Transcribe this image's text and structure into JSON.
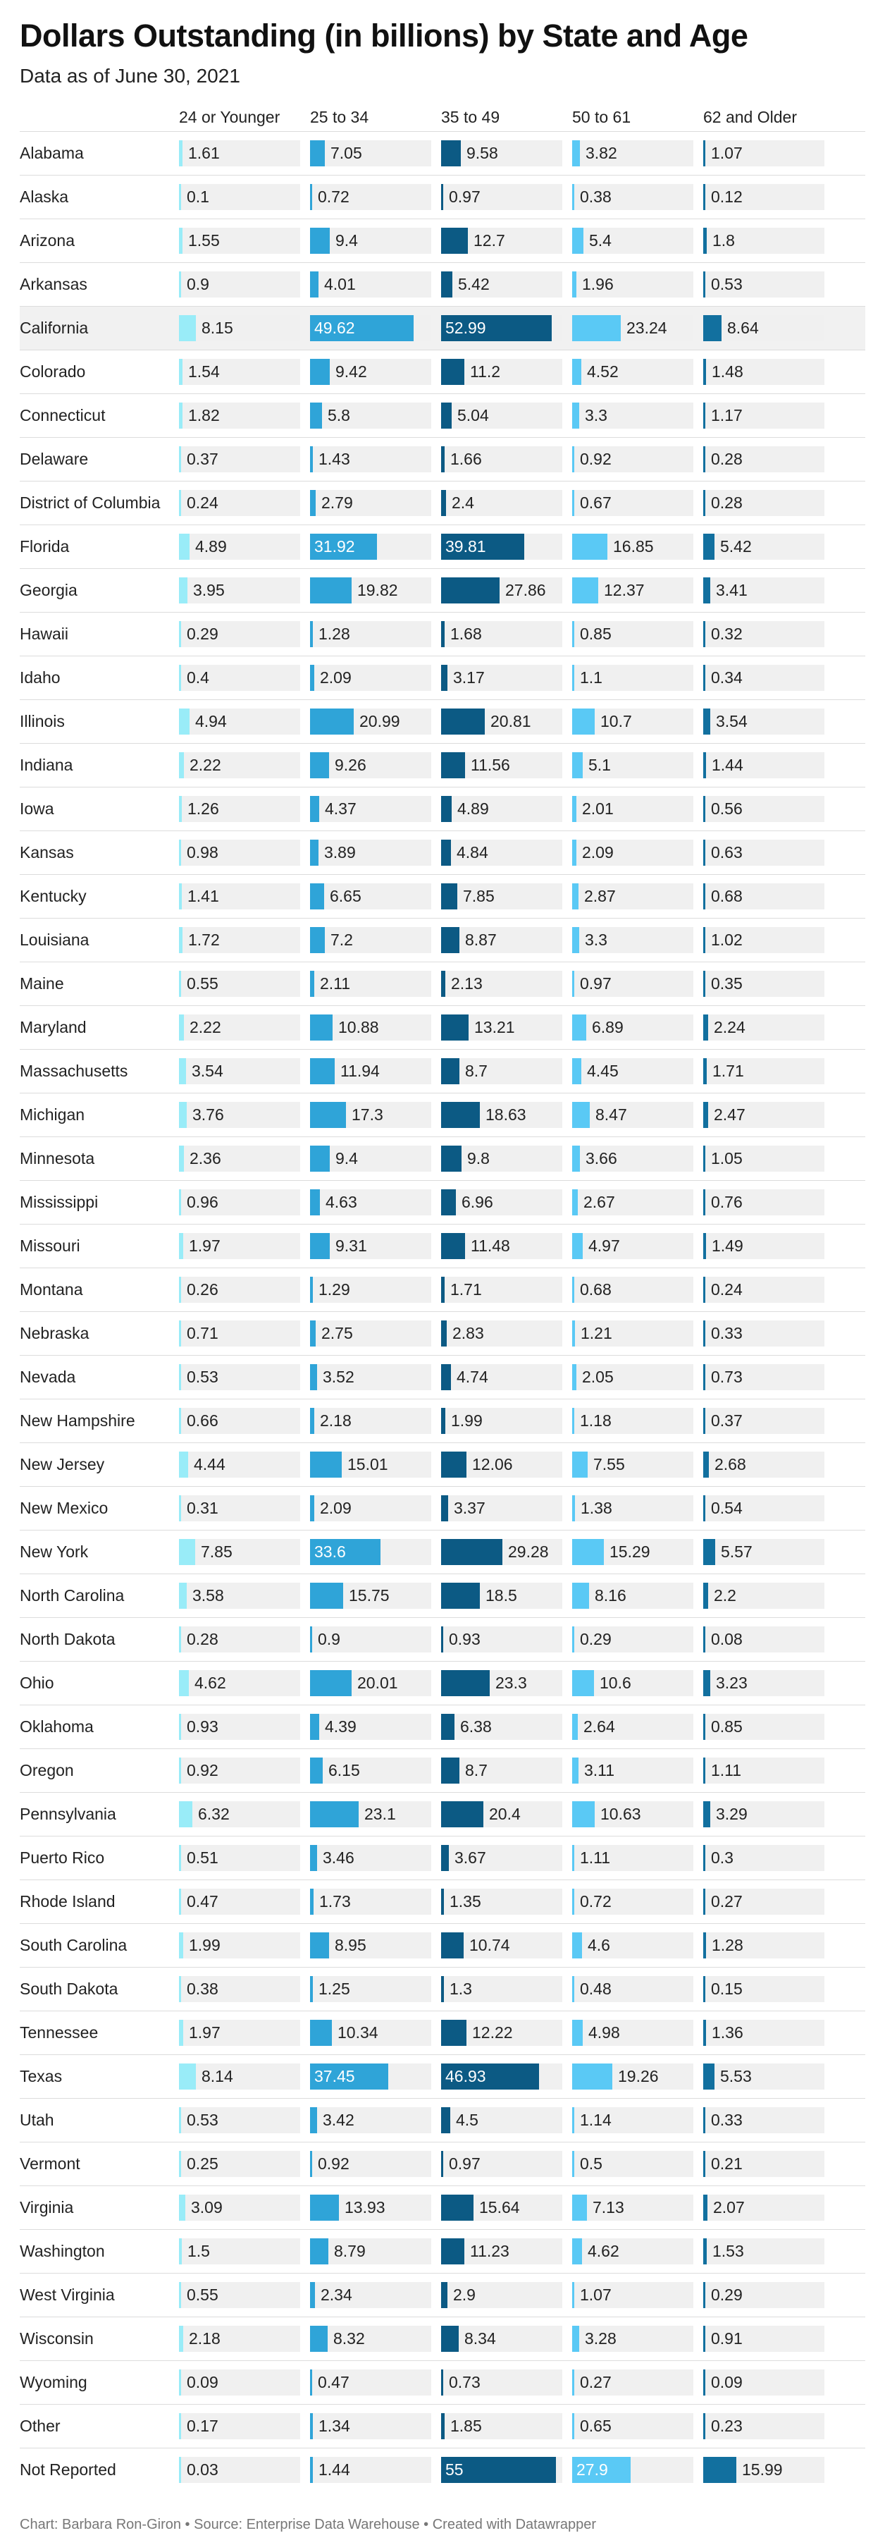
{
  "chart_data": {
    "type": "table",
    "title": "Dollars Outstanding (in billions) by State and Age",
    "subtitle": "Data as of June 30, 2021",
    "columns": [
      {
        "label": "24 or Younger",
        "color": "#99ecf8"
      },
      {
        "label": "25 to 34",
        "color": "#2fa4d8"
      },
      {
        "label": "35 to 49",
        "color": "#0c5a84"
      },
      {
        "label": "50 to 61",
        "color": "#5ac9f5"
      },
      {
        "label": "62 and Older",
        "color": "#12709f"
      }
    ],
    "rows": [
      {
        "state": "Alabama",
        "values": [
          1.61,
          7.05,
          9.58,
          3.82,
          1.07
        ]
      },
      {
        "state": "Alaska",
        "values": [
          0.1,
          0.72,
          0.97,
          0.38,
          0.12
        ]
      },
      {
        "state": "Arizona",
        "values": [
          1.55,
          9.4,
          12.7,
          5.4,
          1.8
        ]
      },
      {
        "state": "Arkansas",
        "values": [
          0.9,
          4.01,
          5.42,
          1.96,
          0.53
        ]
      },
      {
        "state": "California",
        "values": [
          8.15,
          49.62,
          52.99,
          23.24,
          8.64
        ]
      },
      {
        "state": "Colorado",
        "values": [
          1.54,
          9.42,
          11.2,
          4.52,
          1.48
        ]
      },
      {
        "state": "Connecticut",
        "values": [
          1.82,
          5.8,
          5.04,
          3.3,
          1.17
        ]
      },
      {
        "state": "Delaware",
        "values": [
          0.37,
          1.43,
          1.66,
          0.92,
          0.28
        ]
      },
      {
        "state": "District of Columbia",
        "values": [
          0.24,
          2.79,
          2.4,
          0.67,
          0.28
        ]
      },
      {
        "state": "Florida",
        "values": [
          4.89,
          31.92,
          39.81,
          16.85,
          5.42
        ]
      },
      {
        "state": "Georgia",
        "values": [
          3.95,
          19.82,
          27.86,
          12.37,
          3.41
        ]
      },
      {
        "state": "Hawaii",
        "values": [
          0.29,
          1.28,
          1.68,
          0.85,
          0.32
        ]
      },
      {
        "state": "Idaho",
        "values": [
          0.4,
          2.09,
          3.17,
          1.1,
          0.34
        ]
      },
      {
        "state": "Illinois",
        "values": [
          4.94,
          20.99,
          20.81,
          10.7,
          3.54
        ]
      },
      {
        "state": "Indiana",
        "values": [
          2.22,
          9.26,
          11.56,
          5.1,
          1.44
        ]
      },
      {
        "state": "Iowa",
        "values": [
          1.26,
          4.37,
          4.89,
          2.01,
          0.56
        ]
      },
      {
        "state": "Kansas",
        "values": [
          0.98,
          3.89,
          4.84,
          2.09,
          0.63
        ]
      },
      {
        "state": "Kentucky",
        "values": [
          1.41,
          6.65,
          7.85,
          2.87,
          0.68
        ]
      },
      {
        "state": "Louisiana",
        "values": [
          1.72,
          7.2,
          8.87,
          3.3,
          1.02
        ]
      },
      {
        "state": "Maine",
        "values": [
          0.55,
          2.11,
          2.13,
          0.97,
          0.35
        ]
      },
      {
        "state": "Maryland",
        "values": [
          2.22,
          10.88,
          13.21,
          6.89,
          2.24
        ]
      },
      {
        "state": "Massachusetts",
        "values": [
          3.54,
          11.94,
          8.7,
          4.45,
          1.71
        ]
      },
      {
        "state": "Michigan",
        "values": [
          3.76,
          17.3,
          18.63,
          8.47,
          2.47
        ]
      },
      {
        "state": "Minnesota",
        "values": [
          2.36,
          9.4,
          9.8,
          3.66,
          1.05
        ]
      },
      {
        "state": "Mississippi",
        "values": [
          0.96,
          4.63,
          6.96,
          2.67,
          0.76
        ]
      },
      {
        "state": "Missouri",
        "values": [
          1.97,
          9.31,
          11.48,
          4.97,
          1.49
        ]
      },
      {
        "state": "Montana",
        "values": [
          0.26,
          1.29,
          1.71,
          0.68,
          0.24
        ]
      },
      {
        "state": "Nebraska",
        "values": [
          0.71,
          2.75,
          2.83,
          1.21,
          0.33
        ]
      },
      {
        "state": "Nevada",
        "values": [
          0.53,
          3.52,
          4.74,
          2.05,
          0.73
        ]
      },
      {
        "state": "New Hampshire",
        "values": [
          0.66,
          2.18,
          1.99,
          1.18,
          0.37
        ]
      },
      {
        "state": "New Jersey",
        "values": [
          4.44,
          15.01,
          12.06,
          7.55,
          2.68
        ]
      },
      {
        "state": "New Mexico",
        "values": [
          0.31,
          2.09,
          3.37,
          1.38,
          0.54
        ]
      },
      {
        "state": "New York",
        "values": [
          7.85,
          33.6,
          29.28,
          15.29,
          5.57
        ]
      },
      {
        "state": "North Carolina",
        "values": [
          3.58,
          15.75,
          18.5,
          8.16,
          2.2
        ]
      },
      {
        "state": "North Dakota",
        "values": [
          0.28,
          0.9,
          0.93,
          0.29,
          0.08
        ]
      },
      {
        "state": "Ohio",
        "values": [
          4.62,
          20.01,
          23.3,
          10.6,
          3.23
        ]
      },
      {
        "state": "Oklahoma",
        "values": [
          0.93,
          4.39,
          6.38,
          2.64,
          0.85
        ]
      },
      {
        "state": "Oregon",
        "values": [
          0.92,
          6.15,
          8.7,
          3.11,
          1.11
        ]
      },
      {
        "state": "Pennsylvania",
        "values": [
          6.32,
          23.1,
          20.4,
          10.63,
          3.29
        ]
      },
      {
        "state": "Puerto Rico",
        "values": [
          0.51,
          3.46,
          3.67,
          1.11,
          0.3
        ]
      },
      {
        "state": "Rhode Island",
        "values": [
          0.47,
          1.73,
          1.35,
          0.72,
          0.27
        ]
      },
      {
        "state": "South Carolina",
        "values": [
          1.99,
          8.95,
          10.74,
          4.6,
          1.28
        ]
      },
      {
        "state": "South Dakota",
        "values": [
          0.38,
          1.25,
          1.3,
          0.48,
          0.15
        ]
      },
      {
        "state": "Tennessee",
        "values": [
          1.97,
          10.34,
          12.22,
          4.98,
          1.36
        ]
      },
      {
        "state": "Texas",
        "values": [
          8.14,
          37.45,
          46.93,
          19.26,
          5.53
        ]
      },
      {
        "state": "Utah",
        "values": [
          0.53,
          3.42,
          4.5,
          1.14,
          0.33
        ]
      },
      {
        "state": "Vermont",
        "values": [
          0.25,
          0.92,
          0.97,
          0.5,
          0.21
        ]
      },
      {
        "state": "Virginia",
        "values": [
          3.09,
          13.93,
          15.64,
          7.13,
          2.07
        ]
      },
      {
        "state": "Washington",
        "values": [
          1.5,
          8.79,
          11.23,
          4.62,
          1.53
        ]
      },
      {
        "state": "West Virginia",
        "values": [
          0.55,
          2.34,
          2.9,
          1.07,
          0.29
        ]
      },
      {
        "state": "Wisconsin",
        "values": [
          2.18,
          8.32,
          8.34,
          3.28,
          0.91
        ]
      },
      {
        "state": "Wyoming",
        "values": [
          0.09,
          0.47,
          0.73,
          0.27,
          0.09
        ]
      },
      {
        "state": "Other",
        "values": [
          0.17,
          1.34,
          1.85,
          0.65,
          0.23
        ]
      },
      {
        "state": "Not Reported",
        "values": [
          0.03,
          1.44,
          55,
          27.9,
          15.99
        ]
      }
    ],
    "highlighted_row": "California"
  },
  "footer": "Chart: Barbara Ron-Giron • Source: Enterprise Data Warehouse • Created with Datawrapper"
}
